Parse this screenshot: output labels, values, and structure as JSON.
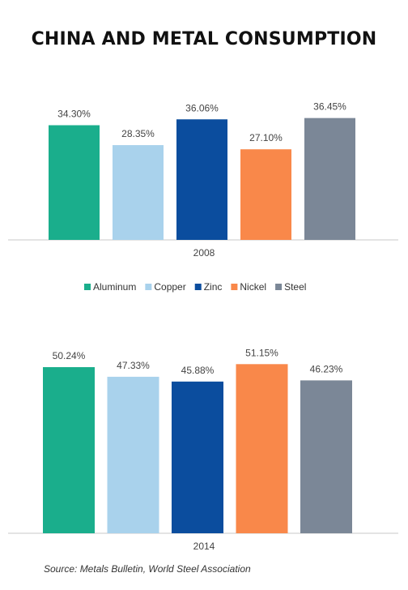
{
  "title": "CHINA AND METAL CONSUMPTION",
  "source": "Source: Metals Bulletin, World Steel Association",
  "legend": [
    {
      "label": "Aluminum",
      "color": "#1aae8c"
    },
    {
      "label": "Copper",
      "color": "#a9d2ec"
    },
    {
      "label": "Zinc",
      "color": "#0b4d9e"
    },
    {
      "label": "Nickel",
      "color": "#f9884a"
    },
    {
      "label": "Steel",
      "color": "#7b8797"
    }
  ],
  "chart_data": [
    {
      "type": "bar",
      "title": "",
      "xlabel": "2008",
      "ylabel": "",
      "categories": [
        "Aluminum",
        "Copper",
        "Zinc",
        "Nickel",
        "Steel"
      ],
      "values": [
        34.3,
        28.35,
        36.06,
        27.1,
        36.45
      ],
      "value_labels": [
        "34.30%",
        "28.35%",
        "36.06%",
        "27.10%",
        "36.45%"
      ],
      "colors": [
        "#1aae8c",
        "#a9d2ec",
        "#0b4d9e",
        "#f9884a",
        "#7b8797"
      ],
      "ylim": [
        0,
        55
      ],
      "grid": false
    },
    {
      "type": "bar",
      "title": "",
      "xlabel": "2014",
      "ylabel": "",
      "categories": [
        "Aluminum",
        "Copper",
        "Zinc",
        "Nickel",
        "Steel"
      ],
      "values": [
        50.24,
        47.33,
        45.88,
        51.15,
        46.23
      ],
      "value_labels": [
        "50.24%",
        "47.33%",
        "45.88%",
        "51.15%",
        "46.23%"
      ],
      "colors": [
        "#1aae8c",
        "#a9d2ec",
        "#0b4d9e",
        "#f9884a",
        "#7b8797"
      ],
      "ylim": [
        0,
        55
      ],
      "grid": false
    }
  ]
}
